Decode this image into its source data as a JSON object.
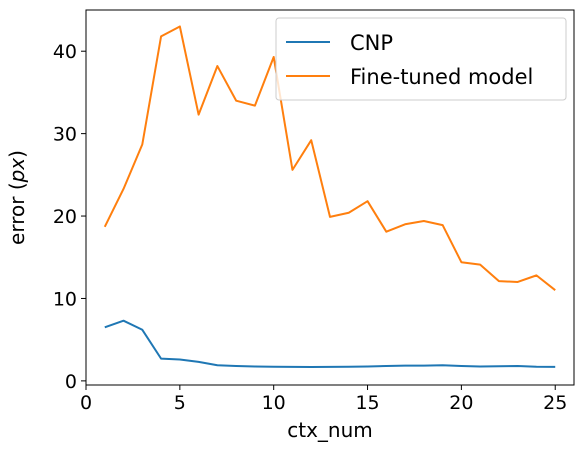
{
  "chart_data": {
    "type": "line",
    "title": "",
    "xlabel": "ctx_num",
    "ylabel_prefix": "error (",
    "ylabel_var": "px",
    "ylabel_suffix": ")",
    "xlim": [
      0,
      26
    ],
    "ylim": [
      -0.5,
      45
    ],
    "xticks": [
      0,
      5,
      10,
      15,
      20,
      25
    ],
    "yticks": [
      0,
      10,
      20,
      30,
      40
    ],
    "grid": false,
    "legend_position": "top-right",
    "x": [
      1,
      2,
      3,
      4,
      5,
      6,
      7,
      8,
      9,
      10,
      11,
      12,
      13,
      14,
      15,
      16,
      17,
      18,
      19,
      20,
      21,
      22,
      23,
      24,
      25
    ],
    "series": [
      {
        "name": "CNP",
        "color": "#1f77b4",
        "values": [
          6.5,
          7.3,
          6.2,
          2.7,
          2.6,
          2.3,
          1.9,
          1.8,
          1.75,
          1.72,
          1.7,
          1.68,
          1.7,
          1.72,
          1.75,
          1.8,
          1.85,
          1.85,
          1.9,
          1.8,
          1.75,
          1.78,
          1.8,
          1.72,
          1.7
        ]
      },
      {
        "name": "Fine-tuned model",
        "color": "#ff7f0e",
        "values": [
          18.7,
          23.3,
          28.7,
          41.8,
          43.0,
          32.3,
          38.2,
          34.0,
          33.4,
          39.3,
          25.6,
          29.2,
          19.9,
          20.4,
          21.8,
          18.1,
          19.0,
          19.4,
          18.9,
          14.4,
          14.1,
          12.1,
          12.0,
          12.8,
          11.0
        ]
      }
    ]
  }
}
